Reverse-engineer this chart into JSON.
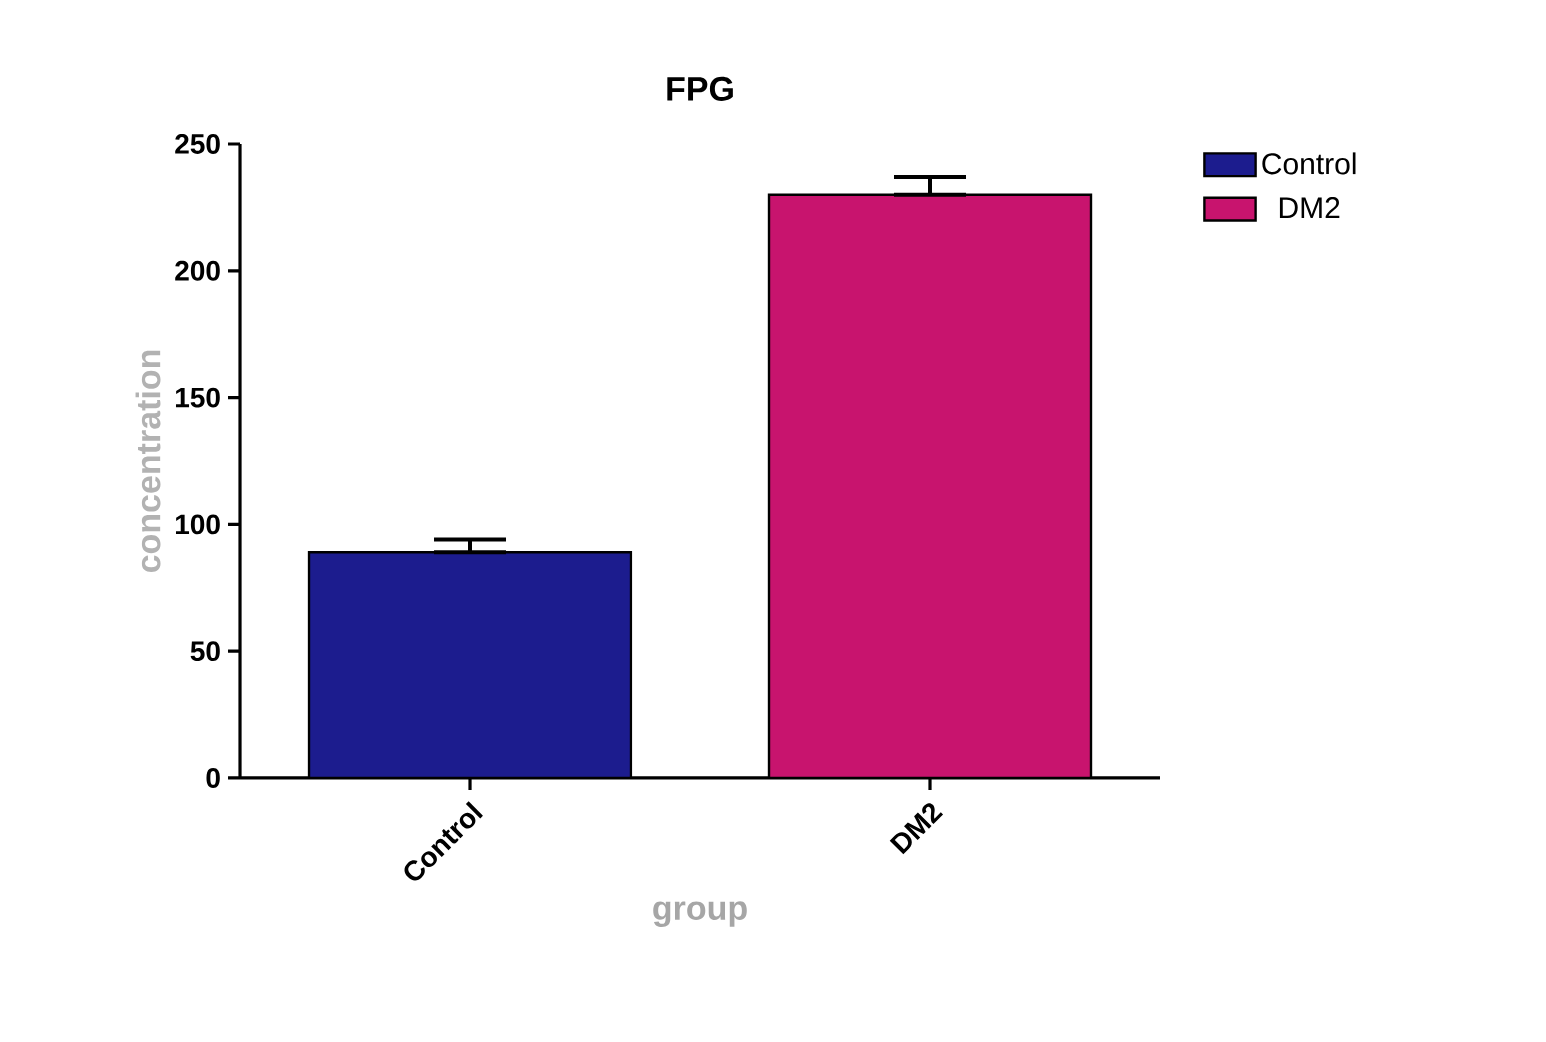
{
  "chart_data": {
    "type": "bar",
    "title": "FPG",
    "xlabel": "group",
    "ylabel": "concentration",
    "categories": [
      "Control",
      "DM2"
    ],
    "series": [
      {
        "name": "Control",
        "color": "#1c1c8e",
        "values": [
          89,
          null
        ],
        "errors": [
          [
            89,
            94
          ],
          null
        ]
      },
      {
        "name": "DM2",
        "color": "#c8146e",
        "values": [
          null,
          230
        ],
        "errors": [
          null,
          [
            230,
            237
          ]
        ]
      }
    ],
    "ylim": [
      0,
      250
    ],
    "yticks": [
      0,
      50,
      100,
      150,
      200,
      250
    ],
    "grid": false,
    "legend": "top right"
  }
}
